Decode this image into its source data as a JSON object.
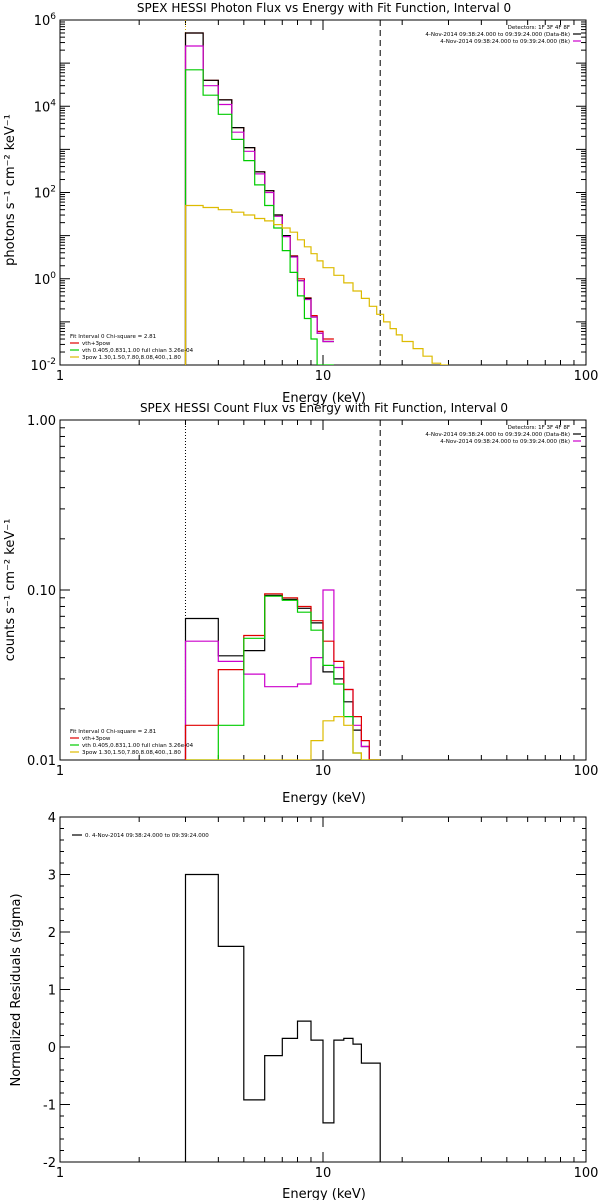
{
  "chart_data": [
    {
      "type": "step-line",
      "title": "SPEX HESSI Photon Flux vs Energy with Fit Function, Interval 0",
      "xlabel": "Energy (keV)",
      "ylabel": "photons s⁻¹ cm⁻² keV⁻¹",
      "xscale": "log",
      "yscale": "log",
      "xlim": [
        1,
        100
      ],
      "ylim": [
        0.01,
        1000000
      ],
      "x_ticks": [
        {
          "v": 1,
          "t": "1"
        },
        {
          "v": 10,
          "t": "10"
        },
        {
          "v": 100,
          "t": "100"
        }
      ],
      "y_ticks": [
        {
          "v": 0.01,
          "base": "10",
          "exp": "-2"
        },
        {
          "v": 1,
          "base": "10",
          "exp": "0"
        },
        {
          "v": 100,
          "base": "10",
          "exp": "2"
        },
        {
          "v": 10000,
          "base": "10",
          "exp": "4"
        },
        {
          "v": 1000000,
          "base": "10",
          "exp": "6"
        }
      ],
      "vlines": [
        {
          "x": 3.0,
          "style": "dotted",
          "color": "#c8a000"
        },
        {
          "x": 16.5,
          "style": "dashed",
          "color": "#000000"
        }
      ],
      "legend_topright": [
        {
          "text": "Detectors: 1F 3F 4F 8F",
          "color": ""
        },
        {
          "text": "4-Nov-2014 09:38:24.000 to 09:39:24.000 (Data-Bk)",
          "color": "#000000"
        },
        {
          "text": "4-Nov-2014 09:38:24.000 to 09:39:24.000 (Bk)",
          "color": "#cc00cc"
        }
      ],
      "legend_bottomleft": [
        {
          "text": "Fit Interval  0    Chi-square = 2.81",
          "color": ""
        },
        {
          "text": "vth+3pow",
          "color": "#e00000"
        },
        {
          "text": "vth 0.405,0.831,1.00  full chian 3.26e-04",
          "color": "#00cc00"
        },
        {
          "text": "3pow 1.30,1.50,7.80,8.08,400.,1.80",
          "color": "#ddbb00"
        }
      ],
      "edges": [
        3.0,
        3.5,
        4.0,
        4.5,
        5.0,
        5.5,
        6.0,
        6.5,
        7.0,
        7.5,
        8.0,
        8.5,
        9.0,
        9.5,
        10.0,
        11.0,
        12.0,
        13.0,
        14.0,
        15.0,
        16.0,
        17.0,
        18.0,
        19.0,
        20.0,
        22.0,
        24.0,
        26.0,
        28.0,
        30.0
      ],
      "series": [
        {
          "name": "vth+3pow",
          "color": "#e00000",
          "step": true,
          "floor_start": true,
          "values": [
            500000,
            40000,
            14000,
            3200,
            1100,
            300,
            110,
            30,
            10,
            3.4,
            1.0,
            0.36,
            0.14,
            0.06,
            0.04
          ]
        },
        {
          "name": "",
          "color": "#000000",
          "step": true,
          "floor_start": true,
          "values": [
            500000,
            40000,
            14000,
            3200,
            1100,
            300,
            110,
            30,
            10,
            3.3,
            0.9,
            0.35,
            0.13,
            0.055,
            0.035
          ]
        },
        {
          "name": "",
          "color": "#cc00cc",
          "step": true,
          "floor_start": true,
          "values": [
            250000,
            30000,
            11000,
            2500,
            900,
            270,
            100,
            28,
            9.5,
            3.2,
            0.9,
            0.33,
            0.13,
            0.055,
            0.035
          ]
        },
        {
          "name": "vth",
          "color": "#00cc00",
          "step": true,
          "floor_start": true,
          "values": [
            70000,
            18000,
            6500,
            1700,
            550,
            150,
            50,
            15,
            4.5,
            1.4,
            0.4,
            0.12,
            0.04,
            0.008,
            0.008
          ]
        },
        {
          "name": "3pow",
          "color": "#ddbb00",
          "step": true,
          "floor_start": true,
          "values": [
            50,
            45,
            40,
            35,
            30,
            25,
            22,
            18,
            15,
            12,
            8,
            5.5,
            3.8,
            2.6,
            1.8,
            1.2,
            0.8,
            0.52,
            0.35,
            0.23,
            0.15,
            0.1,
            0.07,
            0.05,
            0.035,
            0.024,
            0.016,
            0.011,
            0.008
          ]
        }
      ]
    },
    {
      "type": "step-line",
      "title": "SPEX HESSI Count Flux vs Energy with Fit Function, Interval 0",
      "xlabel": "Energy (keV)",
      "ylabel": "counts s⁻¹ cm⁻² keV⁻¹",
      "xscale": "log",
      "yscale": "log",
      "xlim": [
        1,
        100
      ],
      "ylim": [
        0.01,
        1.0
      ],
      "x_ticks": [
        {
          "v": 1,
          "t": "1"
        },
        {
          "v": 10,
          "t": "10"
        },
        {
          "v": 100,
          "t": "100"
        }
      ],
      "y_ticks": [
        {
          "v": 0.01,
          "base": "0.01",
          "exp": ""
        },
        {
          "v": 0.1,
          "base": "0.10",
          "exp": ""
        },
        {
          "v": 1.0,
          "base": "1.00",
          "exp": ""
        }
      ],
      "vlines": [
        {
          "x": 3.0,
          "style": "dotted",
          "color": "#000000"
        },
        {
          "x": 16.5,
          "style": "dashed",
          "color": "#000000"
        }
      ],
      "legend_topright": [
        {
          "text": "Detectors: 1F 3F 4F 8F",
          "color": ""
        },
        {
          "text": "4-Nov-2014 09:38:24.000 to 09:39:24.000 (Data-Bk)",
          "color": "#000000"
        },
        {
          "text": "4-Nov-2014 09:38:24.000 to 09:39:24.000 (Bk)",
          "color": "#cc00cc"
        }
      ],
      "legend_bottomleft": [
        {
          "text": "Fit Interval  0    Chi-square = 2.81",
          "color": ""
        },
        {
          "text": "vth+3pow",
          "color": "#e00000"
        },
        {
          "text": "vth 0.405,0.831,1.00  full chian 3.26e-04",
          "color": "#00cc00"
        },
        {
          "text": "3pow 1.30,1.50,7.80,8.08,400.,1.80",
          "color": "#ddbb00"
        }
      ],
      "edges": [
        3.0,
        4.0,
        5.0,
        6.0,
        7.0,
        8.0,
        9.0,
        10.0,
        11.0,
        12.0,
        13.0,
        14.0,
        15.0,
        16.5
      ],
      "series": [
        {
          "name": "",
          "color": "#000000",
          "step": true,
          "floor_start": true,
          "values": [
            0.068,
            0.041,
            0.044,
            0.093,
            0.088,
            0.078,
            0.064,
            0.033,
            0.03,
            0.022,
            0.015,
            0.012,
            0.008
          ]
        },
        {
          "name": "",
          "color": "#cc00cc",
          "step": true,
          "floor_start": true,
          "values": [
            0.05,
            0.038,
            0.032,
            0.027,
            0.027,
            0.028,
            0.04,
            0.1,
            0.035,
            0.026,
            0.016,
            0.012,
            0.008
          ]
        },
        {
          "name": "vth+3pow",
          "color": "#e00000",
          "step": true,
          "floor_start": true,
          "values": [
            0.016,
            0.034,
            0.054,
            0.095,
            0.09,
            0.08,
            0.066,
            0.05,
            0.038,
            0.026,
            0.018,
            0.013,
            0.008
          ]
        },
        {
          "name": "vth",
          "color": "#00cc00",
          "step": true,
          "floor_start": true,
          "values": [
            0.006,
            0.016,
            0.052,
            0.092,
            0.087,
            0.074,
            0.058,
            0.036,
            0.028,
            0.018,
            0.011,
            0.008,
            0.008
          ]
        },
        {
          "name": "3pow",
          "color": "#ddbb00",
          "step": true,
          "floor_start": true,
          "values": [
            0.008,
            0.008,
            0.008,
            0.008,
            0.008,
            0.009,
            0.013,
            0.017,
            0.018,
            0.016,
            0.011,
            0.008,
            0.008
          ]
        }
      ]
    },
    {
      "type": "step-line",
      "title": "",
      "xlabel": "Energy (keV)",
      "ylabel": "Normalized Residuals (sigma)",
      "xscale": "log",
      "yscale": "linear",
      "xlim": [
        1,
        100
      ],
      "ylim": [
        -2,
        4
      ],
      "x_ticks": [
        {
          "v": 1,
          "t": "1"
        },
        {
          "v": 10,
          "t": "10"
        },
        {
          "v": 100,
          "t": "100"
        }
      ],
      "y_ticks": [
        {
          "v": -2,
          "base": "-2",
          "exp": ""
        },
        {
          "v": -1,
          "base": "-1",
          "exp": ""
        },
        {
          "v": 0,
          "base": "0",
          "exp": ""
        },
        {
          "v": 1,
          "base": "1",
          "exp": ""
        },
        {
          "v": 2,
          "base": "2",
          "exp": ""
        },
        {
          "v": 3,
          "base": "3",
          "exp": ""
        },
        {
          "v": 4,
          "base": "4",
          "exp": ""
        }
      ],
      "vlines": [],
      "legend_topleft": [
        {
          "text": "0.  4-Nov-2014 09:38:24.000 to 09:39:24.000",
          "color": "#000000"
        }
      ],
      "edges": [
        3.0,
        4.0,
        5.0,
        6.0,
        7.0,
        8.0,
        9.0,
        10.0,
        11.0,
        12.0,
        13.0,
        14.0,
        15.0,
        16.5
      ],
      "series": [
        {
          "name": "",
          "color": "#000000",
          "step": true,
          "floor_start": true,
          "floor_end": true,
          "values": [
            3.0,
            1.75,
            -0.92,
            -0.15,
            0.15,
            0.45,
            0.12,
            -1.32,
            0.12,
            0.15,
            0.05,
            -0.28,
            -0.28
          ]
        }
      ]
    }
  ]
}
